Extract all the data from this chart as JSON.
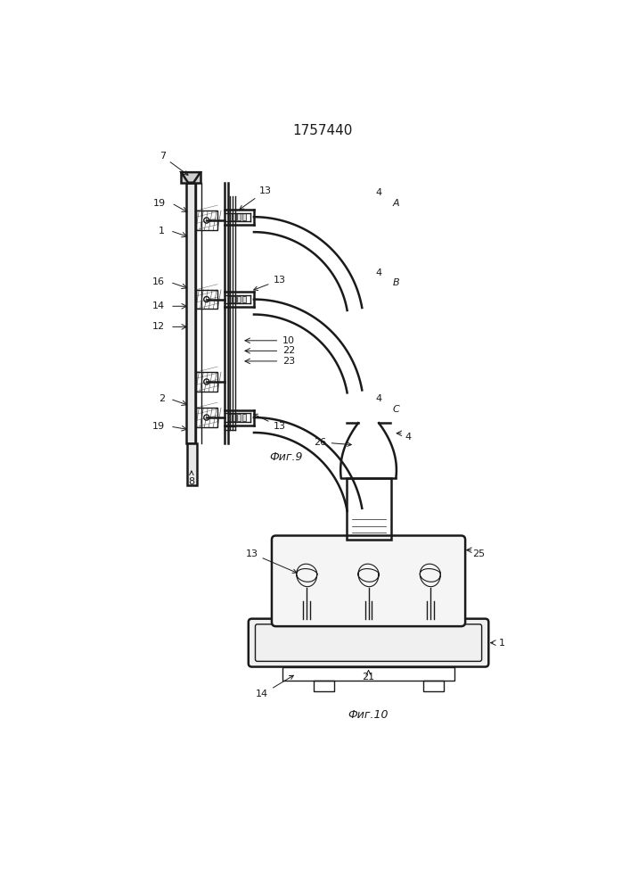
{
  "title": "1757440",
  "title_fontsize": 11,
  "background_color": "#ffffff",
  "fig_width": 7.07,
  "fig_height": 10.0,
  "dpi": 100,
  "fig9_label": "Фиг.9",
  "fig10_label": "Фиг.10",
  "line_color": "#1a1a1a",
  "hatch_color": "#555555"
}
